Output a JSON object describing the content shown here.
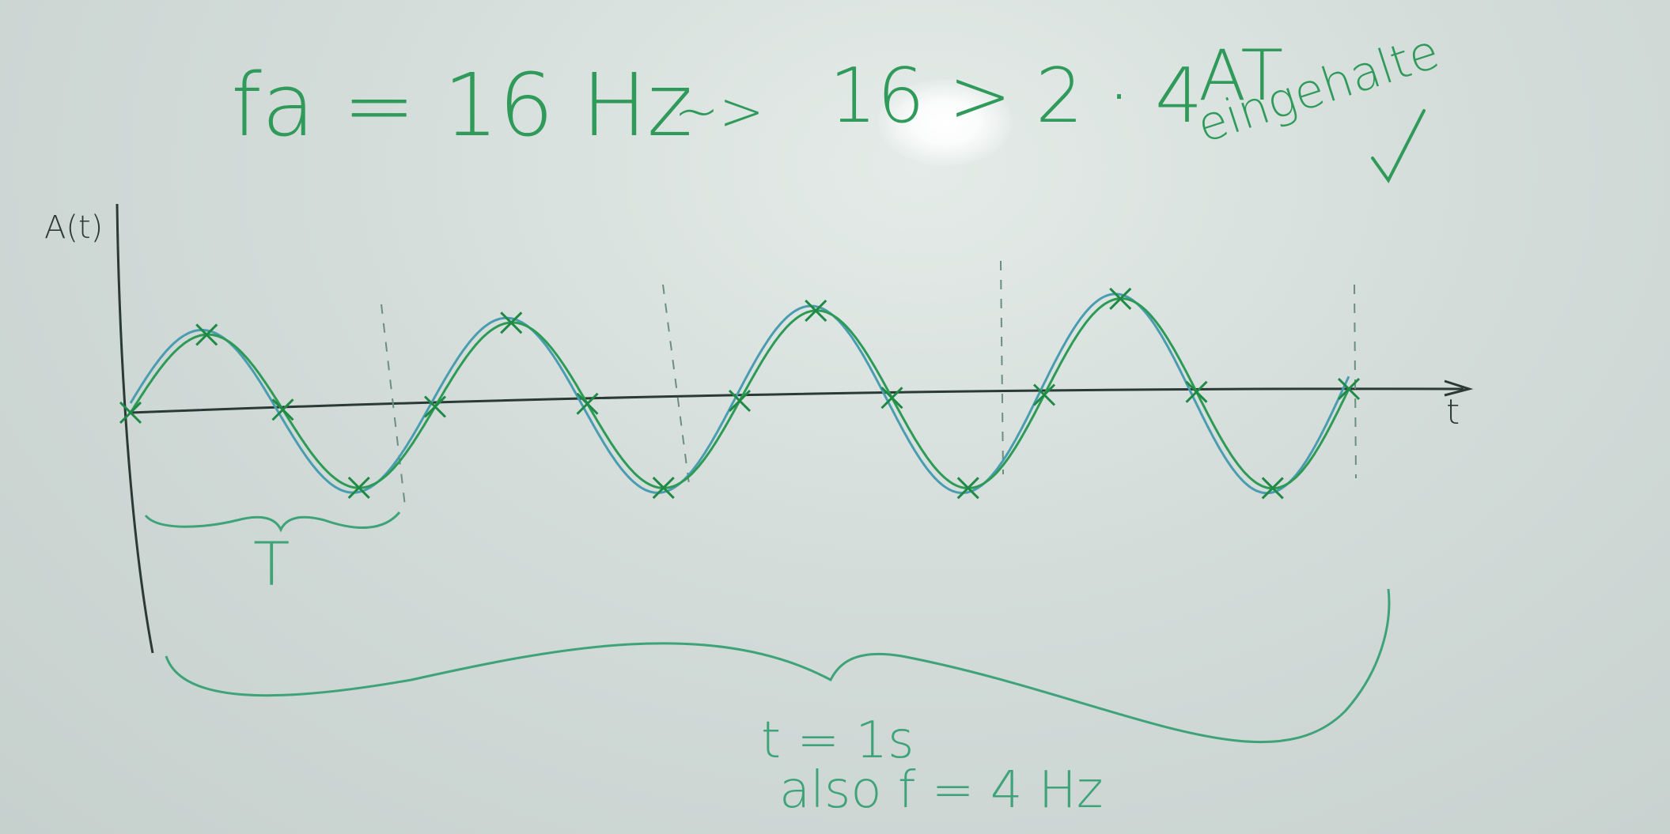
{
  "colors": {
    "marker_green": "#2f9a5a",
    "curve_green": "#2d9b55",
    "curve_blue": "#4a9db0",
    "axis": "#2b3a35",
    "cross": "#1f8a45"
  },
  "notes": {
    "formula_fa": "fa = 16 Hz",
    "arrow": "~>",
    "inequality": "16 > 2 · 4",
    "at_label": "AT",
    "eingehalten": "eingehalte",
    "checkmark": "✓",
    "y_axis_label": "A(t)",
    "x_axis_label": "t",
    "period_label": "T",
    "duration": "t = 1s",
    "conclusion": "also f = 4 Hz"
  },
  "signal": {
    "periods": 4,
    "samples_per_period": 4
  }
}
